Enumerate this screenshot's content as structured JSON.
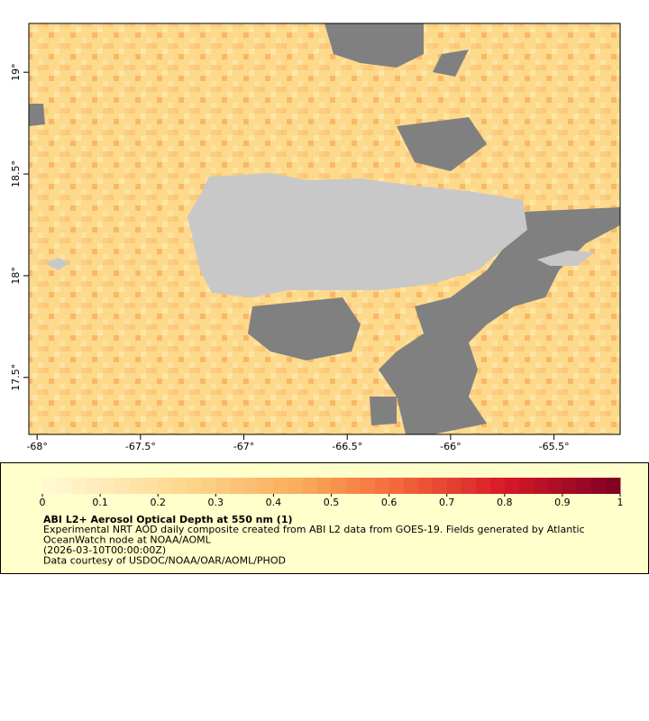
{
  "map": {
    "xlim": [
      -68.04,
      -65.18
    ],
    "ylim": [
      17.22,
      19.24
    ],
    "xticks": [
      {
        "value": -68,
        "label": "-68°"
      },
      {
        "value": -67.5,
        "label": "-67.5°"
      },
      {
        "value": -67,
        "label": "-67°"
      },
      {
        "value": -66.5,
        "label": "-66.5°"
      },
      {
        "value": -66,
        "label": "-66°"
      },
      {
        "value": -65.5,
        "label": "-65.5°"
      }
    ],
    "yticks": [
      {
        "value": 17.5,
        "label": "17.5°"
      },
      {
        "value": 18,
        "label": "18°"
      },
      {
        "value": 18.5,
        "label": "18.5°"
      },
      {
        "value": 19,
        "label": "19°"
      }
    ]
  },
  "legend": {
    "colorbar": {
      "lim": [
        0,
        1
      ],
      "ticks": [
        0,
        0.1,
        0.2,
        0.3,
        0.4,
        0.5,
        0.6,
        0.7,
        0.8,
        0.9,
        1
      ]
    },
    "title": "ABI L2+ Aerosol Optical Depth at 550 nm (1)",
    "lines": [
      "Experimental NRT AOD daily composite created from ABI L2 data from GOES-19. Fields generated by Atlantic",
      "OceanWatch node at NOAA/AOML",
      "(2026-03-10T00:00:00Z)",
      "Data courtesy of USDOC/NOAA/OAR/AOML/PHOD"
    ]
  }
}
